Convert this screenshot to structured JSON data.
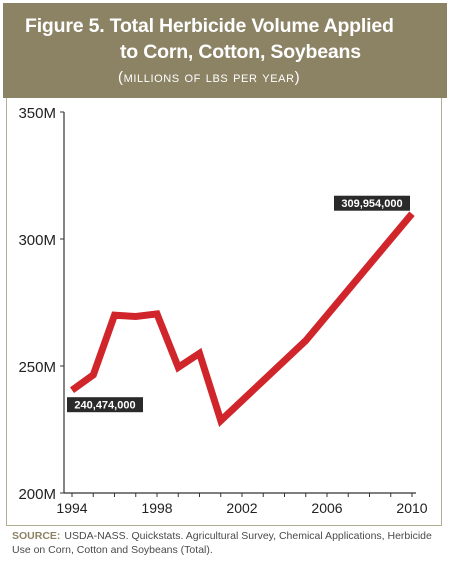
{
  "figure": {
    "title_line1": "Figure 5. Total Herbicide Volume Applied",
    "title_line2": "to Corn, Cotton, Soybeans",
    "subtitle": "(millions of lbs per year)",
    "source_label": "SOURCE:",
    "source_text": "USDA-NASS. Quickstats. Agricultural Survey, Chemical Applications, Herbicide Use on Corn, Cotton and Soybeans (Total)."
  },
  "colors": {
    "header_bg": "#8c8365",
    "line": "#d0262b",
    "label_bg": "#2a2a2a",
    "axis": "#333333"
  },
  "chart_data": {
    "type": "line",
    "title": "Figure 5. Total Herbicide Volume Applied to Corn, Cotton, Soybeans",
    "subtitle": "(millions of lbs per year)",
    "xlabel": "",
    "ylabel": "",
    "xlim": [
      1994,
      2010
    ],
    "ylim": [
      200000000,
      350000000
    ],
    "x_ticks": [
      "1994",
      "1998",
      "2002",
      "2006",
      "2010"
    ],
    "y_ticks": [
      "200M",
      "250M",
      "300M",
      "350M"
    ],
    "grid": false,
    "series": [
      {
        "x": [
          1994,
          1995,
          1996,
          1997,
          1998,
          1999,
          2000,
          2001,
          2005,
          2010
        ],
        "values": [
          240474000,
          246500000,
          270000000,
          269500000,
          270500000,
          249500000,
          255000000,
          228500000,
          260000000,
          309954000
        ]
      }
    ],
    "annotations": [
      {
        "x": 1994,
        "value": 240474000,
        "text": "240,474,000"
      },
      {
        "x": 2010,
        "value": 309954000,
        "text": "309,954,000"
      }
    ]
  }
}
